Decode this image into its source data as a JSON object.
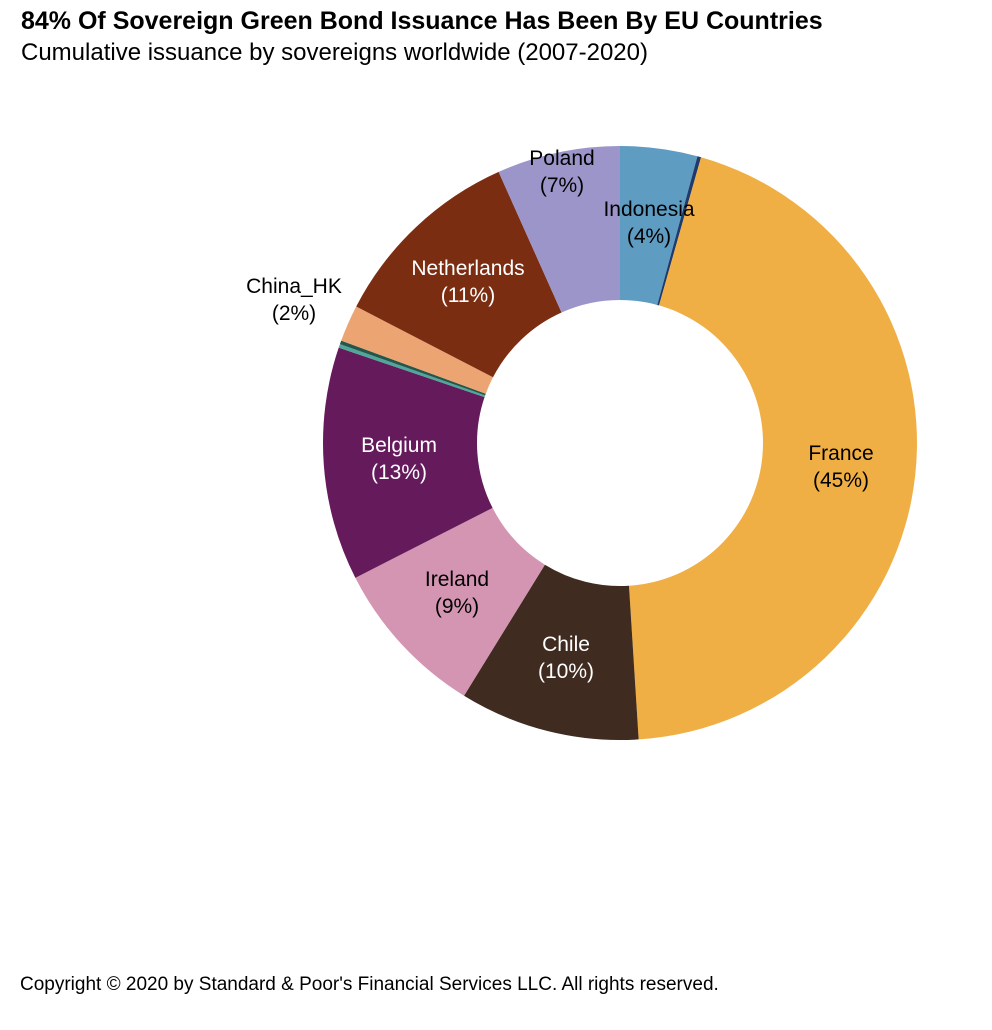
{
  "header": {
    "title": "84% Of Sovereign Green Bond Issuance Has Been By EU Countries",
    "subtitle": "Cumulative issuance by sovereigns worldwide (2007-2020)"
  },
  "footer": {
    "copyright": "Copyright © 2020 by Standard & Poor's Financial Services LLC. All rights reserved."
  },
  "chart_data": {
    "type": "pie",
    "variant": "donut",
    "title": "84% Of Sovereign Green Bond Issuance Has Been By EU Countries",
    "subtitle": "Cumulative issuance by sovereigns worldwide (2007-2020)",
    "unit": "percent of cumulative sovereign green bond issuance",
    "start": "12 o'clock",
    "direction": "clockwise",
    "legend": "none (labels drawn on chart)",
    "segments": [
      {
        "label": "Indonesia",
        "pct": 4,
        "pct_label": "(4%)",
        "weight": 4.2,
        "color": "#5E9CC2",
        "text_color": "#000000",
        "label_placement": "inner"
      },
      {
        "label": "",
        "pct": null,
        "pct_label": "",
        "weight": 0.2,
        "color": "#1F3A6B",
        "text_color": null,
        "label_placement": "none",
        "note": "unlabeled navy sliver"
      },
      {
        "label": "France",
        "pct": 45,
        "pct_label": "(45%)",
        "weight": 44.6,
        "color": "#F0AF44",
        "text_color": "#000000",
        "label_placement": "inner"
      },
      {
        "label": "Chile",
        "pct": 10,
        "pct_label": "(10%)",
        "weight": 9.8,
        "color": "#3F2B20",
        "text_color": "#FFFFFF",
        "label_placement": "inner"
      },
      {
        "label": "Ireland",
        "pct": 9,
        "pct_label": "(9%)",
        "weight": 8.7,
        "color": "#D495B3",
        "text_color": "#000000",
        "label_placement": "inner"
      },
      {
        "label": "Belgium",
        "pct": 13,
        "pct_label": "(13%)",
        "weight": 12.7,
        "color": "#651B5B",
        "text_color": "#FFFFFF",
        "label_placement": "inner"
      },
      {
        "label": "",
        "pct": null,
        "pct_label": "",
        "weight": 0.2,
        "color": "#4FA79B",
        "text_color": null,
        "label_placement": "none",
        "note": "unlabeled teal sliver"
      },
      {
        "label": "",
        "pct": null,
        "pct_label": "",
        "weight": 0.2,
        "color": "#26564A",
        "text_color": null,
        "label_placement": "none",
        "note": "unlabeled dark green sliver"
      },
      {
        "label": "China_HK",
        "pct": 2,
        "pct_label": "(2%)",
        "weight": 2.0,
        "color": "#EDA473",
        "text_color": "#000000",
        "label_placement": "outer"
      },
      {
        "label": "Netherlands",
        "pct": 11,
        "pct_label": "(11%)",
        "weight": 10.7,
        "color": "#7B2D12",
        "text_color": "#FFFFFF",
        "label_placement": "inner"
      },
      {
        "label": "Poland",
        "pct": 7,
        "pct_label": "(7%)",
        "weight": 6.7,
        "color": "#9B95C9",
        "text_color": "#000000",
        "label_placement": "edge"
      }
    ]
  }
}
